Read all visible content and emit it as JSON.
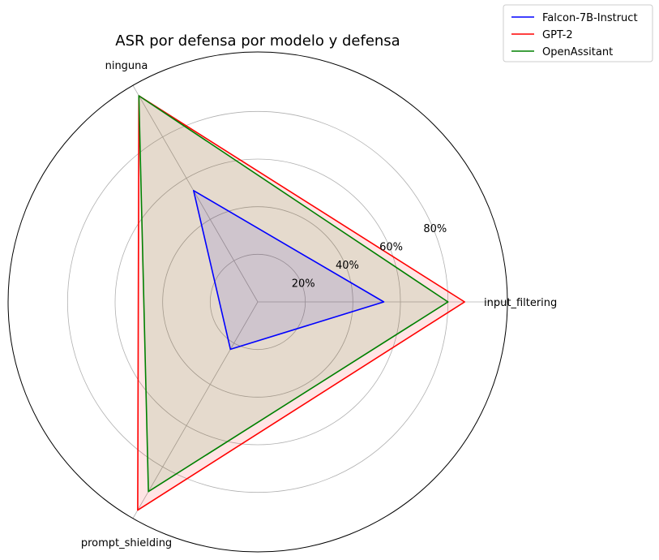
{
  "chart_data": {
    "type": "radar",
    "title": "ASR por defensa por modelo y defensa",
    "axes": [
      "input_filtering",
      "ninguna",
      "prompt_shielding"
    ],
    "rlim": [
      0,
      105
    ],
    "rticks": [
      20,
      40,
      60,
      80
    ],
    "rtick_labels": [
      "20%",
      "40%",
      "60%",
      "80%"
    ],
    "grid": true,
    "legend_position": "top-right",
    "series": [
      {
        "name": "Falcon-7B-Instruct",
        "color": "#0000ff",
        "values": [
          53,
          54,
          23
        ]
      },
      {
        "name": "GPT-2",
        "color": "#ff0000",
        "values": [
          87,
          100,
          101
        ]
      },
      {
        "name": "OpenAssitant",
        "color": "#008000",
        "values": [
          80,
          100,
          92
        ]
      }
    ]
  }
}
